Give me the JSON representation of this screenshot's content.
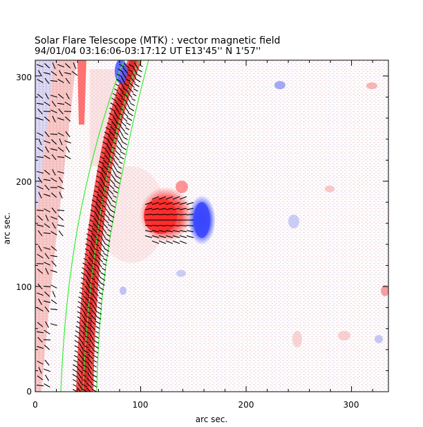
{
  "header": {
    "title": "Solar Flare Telescope (MTK) : vector magnetic field",
    "subtitle": "94/01/04   03:16:06-03:17:12 UT     E13'45''  N 1'57''"
  },
  "chart_data": {
    "type": "heatmap",
    "title": "Solar Flare Telescope (MTK) : vector magnetic field",
    "xlabel": "arc sec.",
    "ylabel": "arc sec.",
    "xlim": [
      0,
      335
    ],
    "ylim": [
      0,
      315
    ],
    "x_ticks": [
      "0",
      "100",
      "200",
      "300"
    ],
    "y_ticks": [
      "0",
      "100",
      "200",
      "300"
    ],
    "x_tick_values": [
      0,
      100,
      200,
      300
    ],
    "y_tick_values": [
      0,
      100,
      200,
      300
    ],
    "colors": {
      "positive": "#ff3030",
      "negative": "#3b4bff",
      "contour": "#33ee33",
      "vector": "#000000"
    },
    "features": [
      {
        "polarity": "positive",
        "x": 125,
        "y": 160,
        "rx": 22,
        "ry": 22
      },
      {
        "polarity": "negative",
        "x": 157,
        "y": 160,
        "rx": 10,
        "ry": 20
      },
      {
        "polarity": "negative",
        "x": 82,
        "y": 300,
        "rx": 6,
        "ry": 12
      },
      {
        "polarity": "negative",
        "x": 235,
        "y": 290,
        "rx": 5,
        "ry": 4
      }
    ]
  }
}
